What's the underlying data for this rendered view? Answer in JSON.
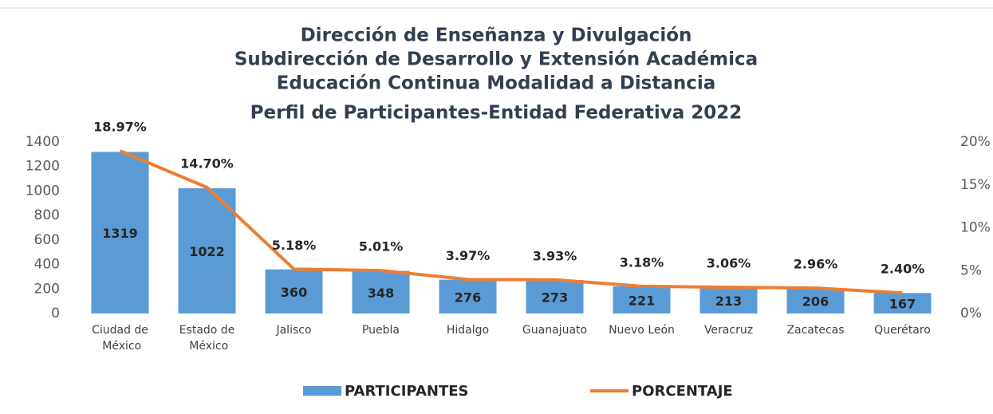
{
  "chart_data": {
    "type": "bar_line",
    "title": [
      "Dirección de Enseñanza y Divulgación",
      "Subdirección de Desarrollo y Extensión Académica",
      "Educación Continua Modalidad a Distancia",
      "Perfil de Participantes-Entidad Federativa 2022"
    ],
    "categories": [
      "Ciudad de México",
      "Estado de México",
      "Jalisco",
      "Puebla",
      "Hidalgo",
      "Guanajuato",
      "Nuevo León",
      "Veracruz",
      "Zacatecas",
      "Querétaro"
    ],
    "series": [
      {
        "name": "PARTICIPANTES",
        "type": "bar",
        "color": "#5b9bd5",
        "values": [
          1319,
          1022,
          360,
          348,
          276,
          273,
          221,
          213,
          206,
          167
        ]
      },
      {
        "name": "PORCENTAJE",
        "type": "line",
        "axis": "y2",
        "color": "#ed7d31",
        "values": [
          18.97,
          14.7,
          5.18,
          5.01,
          3.97,
          3.93,
          3.18,
          3.06,
          2.96,
          2.4
        ],
        "value_labels": [
          "18.97%",
          "14.70%",
          "5.18%",
          "5.01%",
          "3.97%",
          "3.93%",
          "3.18%",
          "3.06%",
          "2.96%",
          "2.40%"
        ]
      }
    ],
    "ylim": [
      0,
      1400
    ],
    "yticks": [
      0,
      200,
      400,
      600,
      800,
      1000,
      1200,
      1400
    ],
    "y2lim": [
      0,
      20
    ],
    "y2ticks": [
      {
        "value": 0,
        "label": "0%"
      },
      {
        "value": 5,
        "label": "5%"
      },
      {
        "value": 10,
        "label": "10%"
      },
      {
        "value": 15,
        "label": "15%"
      },
      {
        "value": 20,
        "label": "20%"
      }
    ],
    "legend": "bottom"
  }
}
